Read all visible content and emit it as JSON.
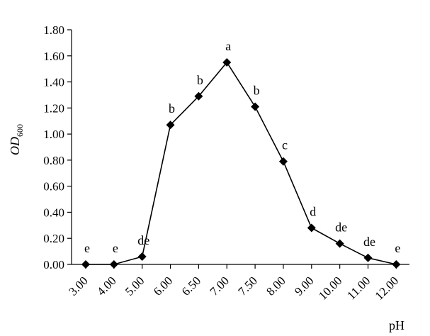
{
  "chart_data": {
    "type": "line",
    "title": "",
    "xlabel": "pH",
    "ylabel": "OD",
    "ylabel_subscript": "600",
    "categories": [
      "3.00",
      "4.00",
      "5.00",
      "6.00",
      "6.50",
      "7.00",
      "7.50",
      "8.00",
      "9.00",
      "10.00",
      "11.00",
      "12.00"
    ],
    "series": [
      {
        "values": [
          0.0,
          0.0,
          0.06,
          1.07,
          1.29,
          1.55,
          1.21,
          0.79,
          0.28,
          0.16,
          0.05,
          0.0
        ],
        "labels": [
          "e",
          "e",
          "de",
          "b",
          "b",
          "a",
          "b",
          "c",
          "d",
          "de",
          "de",
          "e"
        ]
      }
    ],
    "ylim": [
      0,
      1.8
    ],
    "yticks": [
      "0.00",
      "0.20",
      "0.40",
      "0.60",
      "0.80",
      "1.00",
      "1.20",
      "1.40",
      "1.60",
      "1.80"
    ],
    "grid": false,
    "legend": "none",
    "line_color": "#000000",
    "marker": "diamond"
  }
}
